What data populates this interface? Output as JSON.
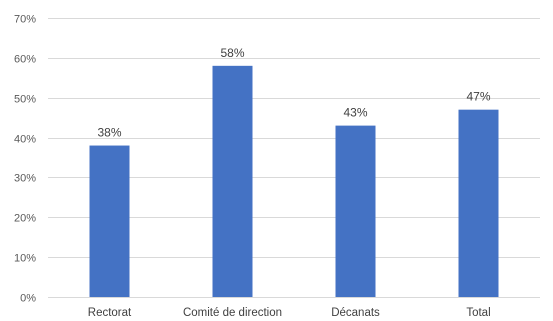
{
  "chart_data": {
    "type": "bar",
    "categories": [
      "Rectorat",
      "Comité de direction",
      "Décanats",
      "Total"
    ],
    "values": [
      38,
      58,
      43,
      47
    ],
    "data_labels": [
      "38%",
      "58%",
      "43%",
      "47%"
    ],
    "ylim": [
      0,
      70
    ],
    "yticks": [
      0,
      10,
      20,
      30,
      40,
      50,
      60,
      70
    ],
    "ytick_labels": [
      "0%",
      "10%",
      "20%",
      "30%",
      "40%",
      "50%",
      "60%",
      "70%"
    ],
    "grid": true,
    "legend": "none",
    "bar_color": "#4472C4",
    "grid_color": "#D9D9D9",
    "title": "",
    "xlabel": "",
    "ylabel": ""
  }
}
